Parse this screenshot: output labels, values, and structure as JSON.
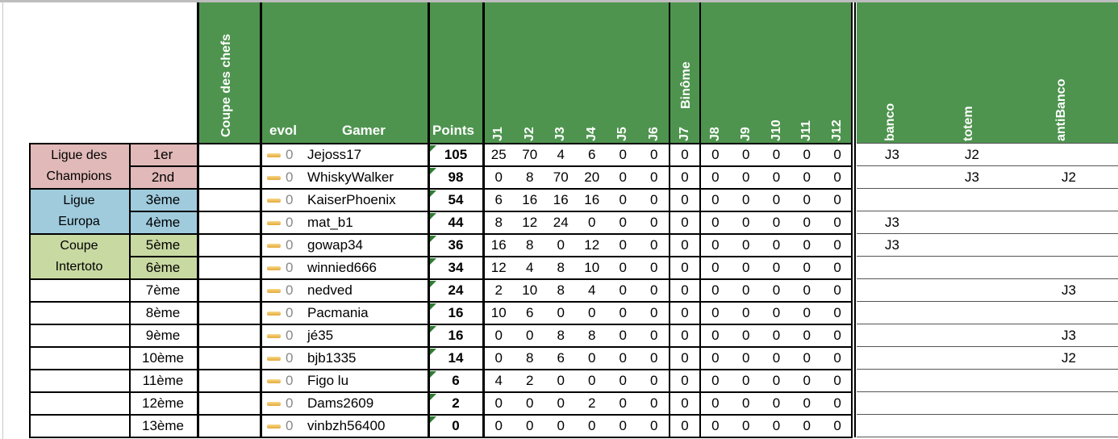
{
  "headers": {
    "coupe": "Coupe des chefs",
    "evol": "evol",
    "gamer": "Gamer",
    "points": "Points",
    "journees": [
      "J1",
      "J2",
      "J3",
      "J4",
      "J5",
      "J6",
      "J7",
      "J8",
      "J9",
      "J10",
      "J11",
      "J12"
    ],
    "binome": "Binôme",
    "banco": "banco",
    "totem": "totem",
    "antibanco": "antiBanco"
  },
  "colors": {
    "header": "#4E944F",
    "champions": "#E1B9B8",
    "europa": "#9FCBDD",
    "intertoto": "#C8D9A2"
  },
  "leagues": [
    {
      "label": "Ligue des Champions",
      "lines": [
        "Ligue des",
        "Champions"
      ],
      "color": "#E1B9B8"
    },
    {
      "label": "Ligue Europa",
      "lines": [
        "Ligue",
        "Europa"
      ],
      "color": "#9FCBDD"
    },
    {
      "label": "Coupe Intertoto",
      "lines": [
        "Coupe",
        "Intertoto"
      ],
      "color": "#C8D9A2"
    }
  ],
  "rows": [
    {
      "rank": "1er",
      "evol": "0",
      "gamer": "Jejoss17",
      "points": "105",
      "j": [
        "25",
        "70",
        "4",
        "6",
        "0",
        "0",
        "0",
        "0",
        "0",
        "0",
        "0",
        "0"
      ],
      "banco": "J3",
      "totem": "J2",
      "antibanco": ""
    },
    {
      "rank": "2nd",
      "evol": "0",
      "gamer": "WhiskyWalker",
      "points": "98",
      "j": [
        "0",
        "8",
        "70",
        "20",
        "0",
        "0",
        "0",
        "0",
        "0",
        "0",
        "0",
        "0"
      ],
      "banco": "",
      "totem": "J3",
      "antibanco": "J2"
    },
    {
      "rank": "3ème",
      "evol": "0",
      "gamer": "KaiserPhoenix",
      "points": "54",
      "j": [
        "6",
        "16",
        "16",
        "16",
        "0",
        "0",
        "0",
        "0",
        "0",
        "0",
        "0",
        "0"
      ],
      "banco": "",
      "totem": "",
      "antibanco": ""
    },
    {
      "rank": "4ème",
      "evol": "0",
      "gamer": "mat_b1",
      "points": "44",
      "j": [
        "8",
        "12",
        "24",
        "0",
        "0",
        "0",
        "0",
        "0",
        "0",
        "0",
        "0",
        "0"
      ],
      "banco": "J3",
      "totem": "",
      "antibanco": ""
    },
    {
      "rank": "5ème",
      "evol": "0",
      "gamer": "gowap34",
      "points": "36",
      "j": [
        "16",
        "8",
        "0",
        "12",
        "0",
        "0",
        "0",
        "0",
        "0",
        "0",
        "0",
        "0"
      ],
      "banco": "J3",
      "totem": "",
      "antibanco": ""
    },
    {
      "rank": "6ème",
      "evol": "0",
      "gamer": "winnied666",
      "points": "34",
      "j": [
        "12",
        "4",
        "8",
        "10",
        "0",
        "0",
        "0",
        "0",
        "0",
        "0",
        "0",
        "0"
      ],
      "banco": "",
      "totem": "",
      "antibanco": ""
    },
    {
      "rank": "7ème",
      "evol": "0",
      "gamer": "nedved",
      "points": "24",
      "j": [
        "2",
        "10",
        "8",
        "4",
        "0",
        "0",
        "0",
        "0",
        "0",
        "0",
        "0",
        "0"
      ],
      "banco": "",
      "totem": "",
      "antibanco": "J3"
    },
    {
      "rank": "8ème",
      "evol": "0",
      "gamer": "Pacmania",
      "points": "16",
      "j": [
        "10",
        "6",
        "0",
        "0",
        "0",
        "0",
        "0",
        "0",
        "0",
        "0",
        "0",
        "0"
      ],
      "banco": "",
      "totem": "",
      "antibanco": ""
    },
    {
      "rank": "9ème",
      "evol": "0",
      "gamer": "jé35",
      "points": "16",
      "j": [
        "0",
        "0",
        "8",
        "8",
        "0",
        "0",
        "0",
        "0",
        "0",
        "0",
        "0",
        "0"
      ],
      "banco": "",
      "totem": "",
      "antibanco": "J3"
    },
    {
      "rank": "10ème",
      "evol": "0",
      "gamer": "bjb1335",
      "points": "14",
      "j": [
        "0",
        "8",
        "6",
        "0",
        "0",
        "0",
        "0",
        "0",
        "0",
        "0",
        "0",
        "0"
      ],
      "banco": "",
      "totem": "",
      "antibanco": "J2"
    },
    {
      "rank": "11ème",
      "evol": "0",
      "gamer": "Figo lu",
      "points": "6",
      "j": [
        "4",
        "2",
        "0",
        "0",
        "0",
        "0",
        "0",
        "0",
        "0",
        "0",
        "0",
        "0"
      ],
      "banco": "",
      "totem": "",
      "antibanco": ""
    },
    {
      "rank": "12ème",
      "evol": "0",
      "gamer": "Dams2609",
      "points": "2",
      "j": [
        "0",
        "0",
        "0",
        "2",
        "0",
        "0",
        "0",
        "0",
        "0",
        "0",
        "0",
        "0"
      ],
      "banco": "",
      "totem": "",
      "antibanco": ""
    },
    {
      "rank": "13ème",
      "evol": "0",
      "gamer": "vinbzh56400",
      "points": "0",
      "j": [
        "0",
        "0",
        "0",
        "0",
        "0",
        "0",
        "0",
        "0",
        "0",
        "0",
        "0",
        "0"
      ],
      "banco": "",
      "totem": "",
      "antibanco": ""
    }
  ]
}
